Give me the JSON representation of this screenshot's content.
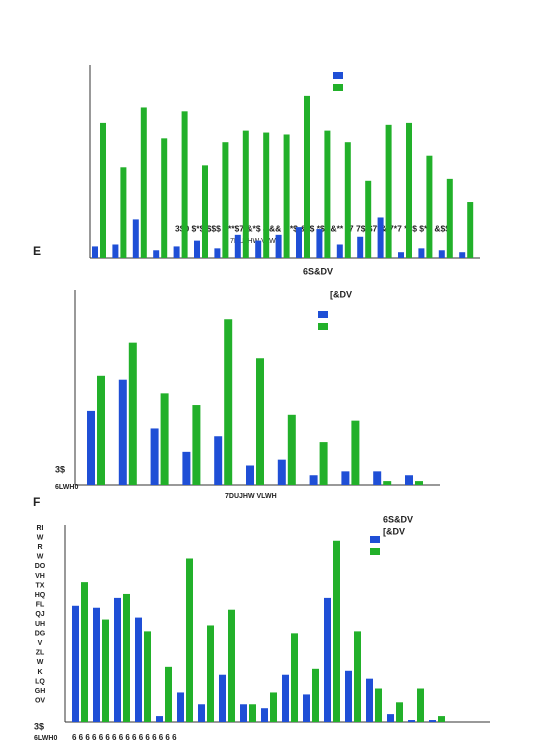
{
  "chart_data": [
    {
      "type": "bar",
      "series": [
        {
          "color": "#1f4fd6",
          "values": [
            6,
            7,
            20,
            4,
            6,
            9,
            5,
            12,
            9,
            12,
            16,
            15,
            7,
            11,
            21,
            3,
            5,
            4,
            3
          ]
        },
        {
          "color": "#22b02a",
          "values": [
            70,
            47,
            78,
            62,
            76,
            48,
            60,
            66,
            65,
            64,
            84,
            66,
            60,
            40,
            69,
            70,
            53,
            41,
            29
          ]
        }
      ],
      "ylim": [
        0,
        100
      ],
      "annotations": [
        "3$0 $*$ $$$ $**$7 &*$ &&& &*$ &*$ *$ *&** *7 7$ $7*& 7*7 *$$ $*7 &$$",
        "7DUJHW VLWH"
      ]
    },
    {
      "type": "bar",
      "panel_label": "E",
      "title": "6S&DV",
      "subtitle": "[&DV",
      "series": [
        {
          "color": "#1f4fd6",
          "values": [
            38,
            54,
            29,
            17,
            25,
            10,
            13,
            5,
            7,
            7,
            5
          ]
        },
        {
          "color": "#22b02a",
          "values": [
            56,
            73,
            47,
            41,
            85,
            65,
            36,
            22,
            33,
            2,
            2
          ]
        }
      ],
      "ylim": [
        0,
        100
      ],
      "annotations": [
        "3$",
        "6LWH0",
        "7DUJHW VLWH"
      ]
    },
    {
      "type": "bar",
      "panel_label": "F",
      "title": "6S&DV",
      "subtitle": "[&DV",
      "ylabel_letters": [
        "RI",
        "W",
        "R",
        "W",
        "DO",
        "VH",
        "TX",
        "HQ",
        "FL",
        "QJ",
        "UH",
        "DG",
        "V",
        "ZL",
        "W",
        "K",
        "LQ",
        "GH",
        "OV"
      ],
      "series": [
        {
          "color": "#1f4fd6",
          "values": [
            59,
            58,
            63,
            53,
            3,
            15,
            9,
            24,
            9,
            7,
            24,
            14,
            63,
            26,
            22,
            4,
            1,
            1
          ]
        },
        {
          "color": "#22b02a",
          "values": [
            71,
            52,
            65,
            46,
            28,
            83,
            49,
            57,
            9,
            15,
            45,
            27,
            92,
            46,
            17,
            10,
            17,
            3
          ]
        }
      ],
      "ylim": [
        0,
        100
      ],
      "annotations": [
        "3$",
        "6LWH0",
        "6    6    6    6    6    6    6    6    6    6    6    6    6    6    6    6"
      ]
    }
  ]
}
